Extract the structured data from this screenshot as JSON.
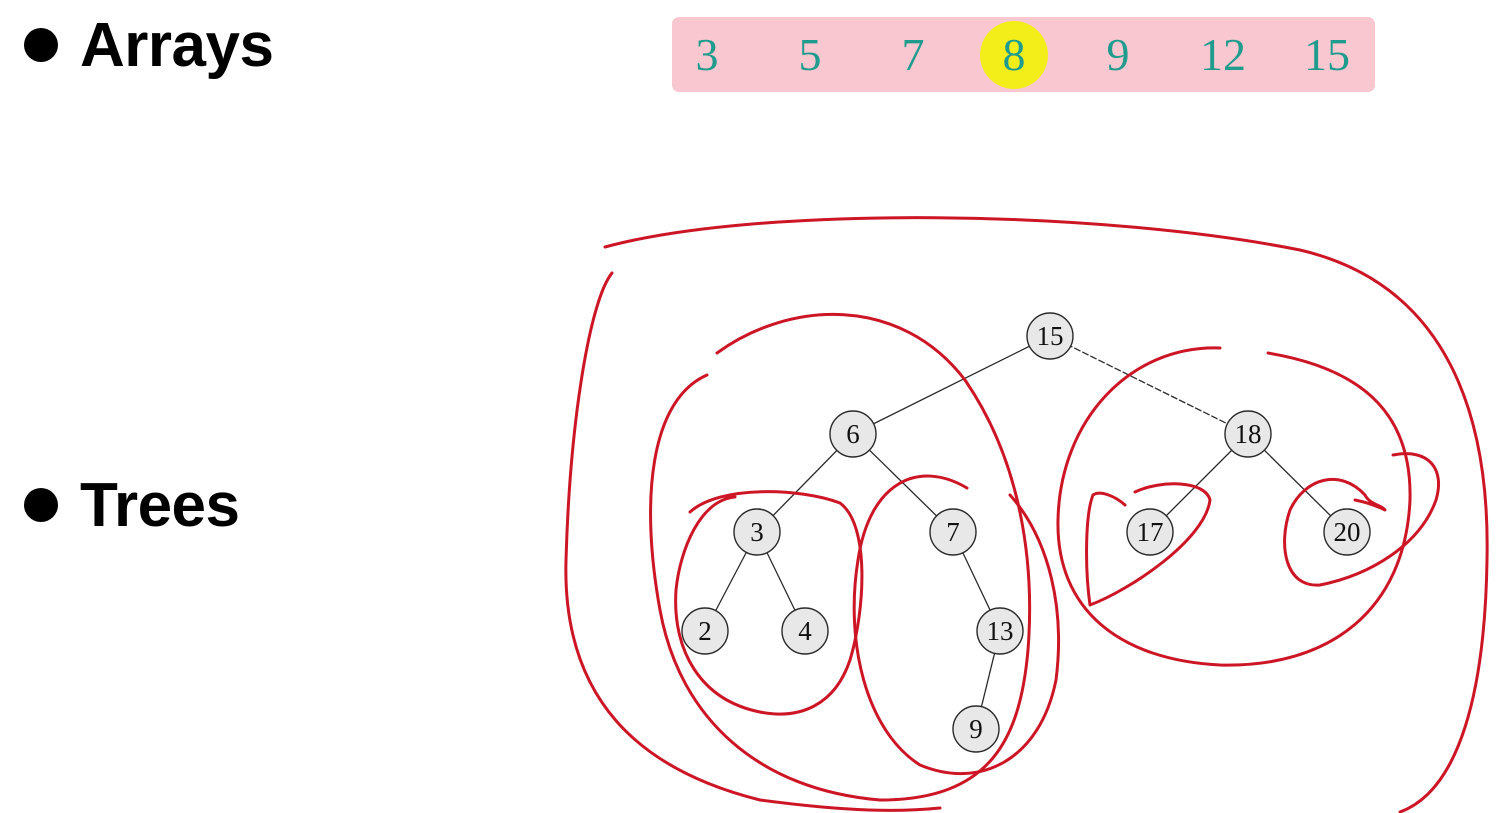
{
  "bullets": {
    "arrays": "Arrays",
    "trees": "Trees"
  },
  "array": {
    "values": [
      "3",
      "5",
      "7",
      "8",
      "9",
      "12",
      "15"
    ],
    "highlighted_index": 3,
    "colors": {
      "background": "#f8c7cf",
      "text": "#1f9c8e",
      "highlight": "#f3ee1a"
    }
  },
  "tree": {
    "nodes": [
      {
        "id": "n15",
        "label": "15"
      },
      {
        "id": "n6",
        "label": "6"
      },
      {
        "id": "n18",
        "label": "18"
      },
      {
        "id": "n3",
        "label": "3"
      },
      {
        "id": "n7",
        "label": "7"
      },
      {
        "id": "n17",
        "label": "17"
      },
      {
        "id": "n20",
        "label": "20"
      },
      {
        "id": "n2",
        "label": "2"
      },
      {
        "id": "n4",
        "label": "4"
      },
      {
        "id": "n13",
        "label": "13"
      },
      {
        "id": "n9",
        "label": "9"
      }
    ],
    "edges": [
      [
        "n15",
        "n6"
      ],
      [
        "n15",
        "n18"
      ],
      [
        "n6",
        "n3"
      ],
      [
        "n6",
        "n7"
      ],
      [
        "n3",
        "n2"
      ],
      [
        "n3",
        "n4"
      ],
      [
        "n7",
        "n13"
      ],
      [
        "n13",
        "n9"
      ],
      [
        "n18",
        "n17"
      ],
      [
        "n18",
        "n20"
      ]
    ],
    "annotation_color": "#cc1626"
  }
}
